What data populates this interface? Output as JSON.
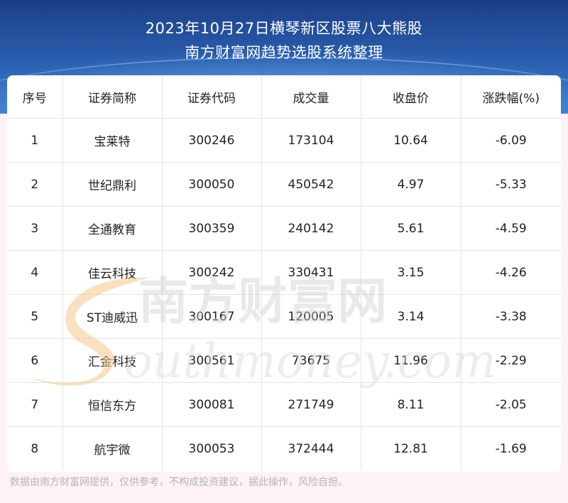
{
  "header": {
    "title_line1": "2023年10月27日横琴新区股票八大熊股",
    "title_line2": "南方财富网趋势选股系统整理"
  },
  "table": {
    "columns": [
      "序号",
      "证券简称",
      "证券代码",
      "成交量",
      "收盘价",
      "涨跌幅(%)"
    ],
    "rows": [
      [
        "1",
        "宝莱特",
        "300246",
        "173104",
        "10.64",
        "-6.09"
      ],
      [
        "2",
        "世纪鼎利",
        "300050",
        "450542",
        "4.97",
        "-5.33"
      ],
      [
        "3",
        "全通教育",
        "300359",
        "240142",
        "5.61",
        "-4.59"
      ],
      [
        "4",
        "佳云科技",
        "300242",
        "330431",
        "3.15",
        "-4.26"
      ],
      [
        "5",
        "ST迪威迅",
        "300167",
        "120005",
        "3.14",
        "-3.38"
      ],
      [
        "6",
        "汇金科技",
        "300561",
        "73675",
        "11.96",
        "-2.29"
      ],
      [
        "7",
        "恒信东方",
        "300081",
        "271749",
        "8.11",
        "-2.05"
      ],
      [
        "8",
        "航宇微",
        "300053",
        "372444",
        "12.81",
        "-1.69"
      ]
    ]
  },
  "watermark": {
    "cn": "南方财富网",
    "en": "outhmoney.com"
  },
  "footer": {
    "disclaimer": "数据由南方财富网提供，仅供参考，不构成投资建议，据此操作，风险自担。"
  },
  "colors": {
    "header_top": "#1c3f86",
    "header_bottom": "#3f7fd0",
    "page_bg": "#fdf3f4",
    "watermark_gold": "#f2c98a"
  }
}
